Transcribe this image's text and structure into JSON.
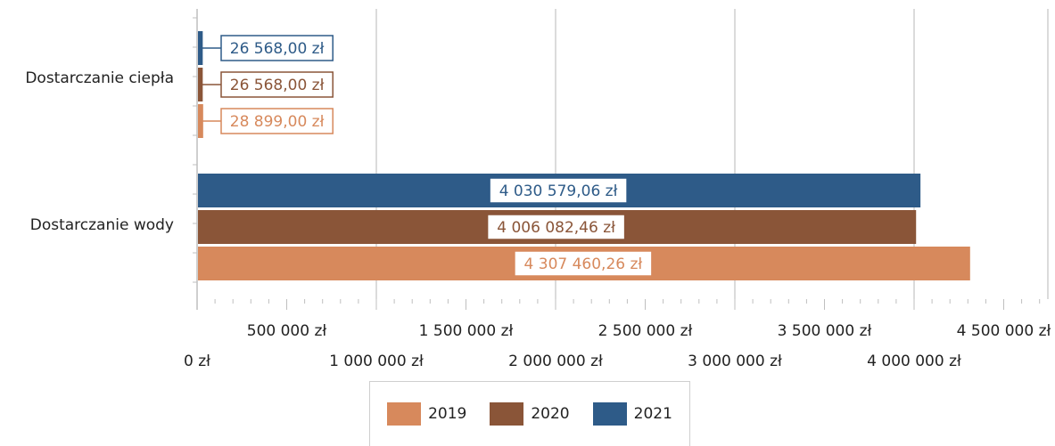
{
  "chart_data": {
    "type": "bar",
    "orientation": "horizontal",
    "categories": [
      "Dostarczanie ciepła",
      "Dostarczanie wody"
    ],
    "series": [
      {
        "name": "2019",
        "color": "#D7895C",
        "values": [
          28899.0,
          4307460.26
        ],
        "labels": [
          "28 899,00 zł",
          "4 307 460,26 zł"
        ]
      },
      {
        "name": "2020",
        "color": "#8A5538",
        "values": [
          26568.0,
          4006082.46
        ],
        "labels": [
          "26 568,00 zł",
          "4 006 082,46 zł"
        ]
      },
      {
        "name": "2021",
        "color": "#2E5B88",
        "values": [
          26568.0,
          4030579.06
        ],
        "labels": [
          "26 568,00 zł",
          "4 030 579,06 zł"
        ]
      }
    ],
    "xlim": [
      0,
      4700000
    ],
    "xticks": [
      0,
      500000,
      1000000,
      1500000,
      2000000,
      2500000,
      3000000,
      3500000,
      4000000,
      4500000
    ],
    "xtick_labels": [
      "0 zł",
      "500 000 zł",
      "1 000 000 zł",
      "1 500 000 zł",
      "2 000 000 zł",
      "2 500 000 zł",
      "3 000 000 zł",
      "3 500 000 zł",
      "4 000 000 zł",
      "4 500 000 zł"
    ],
    "grid": true,
    "legend_position": "bottom"
  }
}
